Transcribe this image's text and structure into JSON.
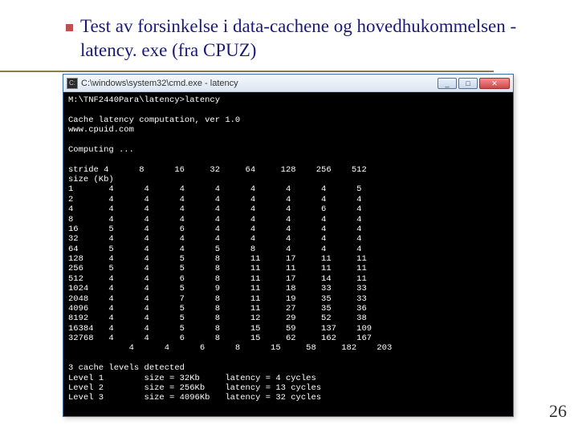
{
  "slide": {
    "title": "Test av forsinkelse i data-cachene og hovedhukommelsen  - latency. exe (fra CPUZ)",
    "page_number": "26",
    "title_color": "#1a1a7a",
    "accent_color": "#c05050",
    "underline_color": "#8a7a50"
  },
  "window": {
    "titlebar_text": "C:\\windows\\system32\\cmd.exe - latency",
    "buttons": {
      "minimize": "_",
      "maximize": "□",
      "close": "✕"
    }
  },
  "terminal": {
    "prompt_line": "M:\\TNF2440Para\\latency>latency",
    "header1": "Cache latency computation, ver 1.0",
    "header2": "www.cpuid.com",
    "computing": "Computing ...",
    "col_header": "stride 4      8      16     32     64     128    256    512",
    "col_sub": "size (Kb)",
    "rows": [
      "1       4      4      4      4      4      4      4      5",
      "2       4      4      4      4      4      4      4      4",
      "4       4      4      4      4      4      4      6      4",
      "8       4      4      4      4      4      4      4      4",
      "16      5      4      6      4      4      4      4      4",
      "32      4      4      4      4      4      4      4      4",
      "64      5      4      4      5      8      4      4      4",
      "128     4      4      5      8      11     17     11     11",
      "256     5      4      5      8      11     11     11     11",
      "512     4      4      6      8      11     17     14     11",
      "1024    4      4      5      9      11     18     33     33",
      "2048    4      4      7      8      11     19     35     33",
      "4096    4      4      5      8      11     27     35     36",
      "8192    4      4      5      8      12     29     52     38",
      "16384   4      4      5      8      15     59     137    109",
      "32768   4      4      6      8      15     62     162    167",
      "",
      "3 cache levels detected",
      "Level 1        size = 32Kb     latency = 4 cycles",
      "Level 2        size = 256Kb    latency = 13 cycles",
      "Level 3        size = 4096Kb   latency = 32 cycles"
    ],
    "background_color": "#000000",
    "text_color": "#ffffff",
    "last_row_partial": "            4      4      6      8      15     58     182    203"
  }
}
